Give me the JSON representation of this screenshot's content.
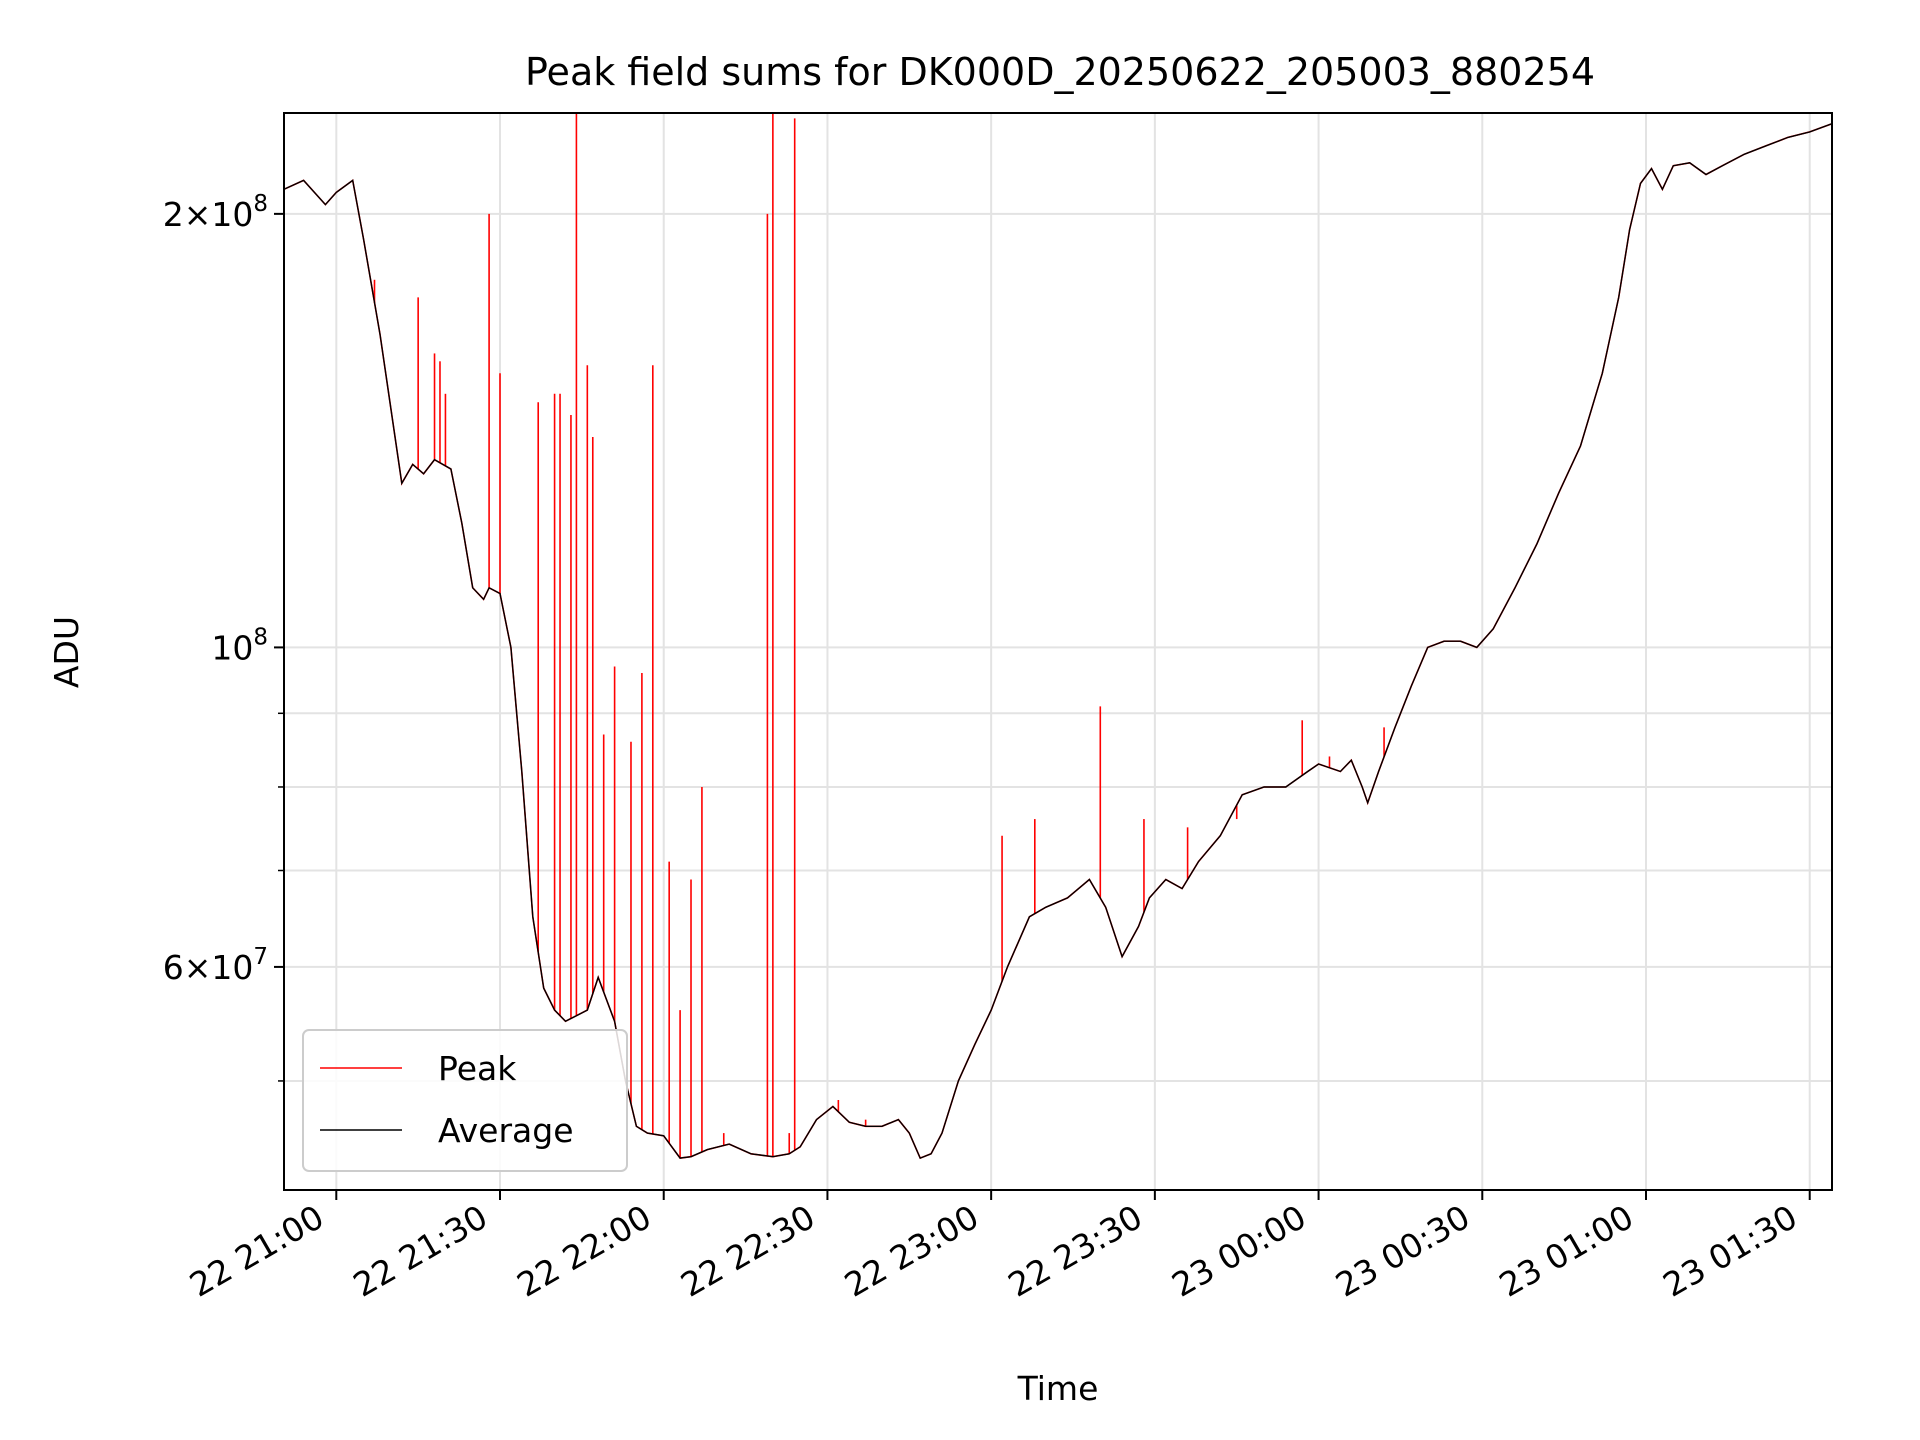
{
  "chart_data": {
    "type": "line",
    "title": "Peak field sums for DK000D_20250622_205003_880254",
    "xlabel": "Time",
    "ylabel": "ADU",
    "y_scale": "log",
    "ylim": [
      42000000,
      235000000
    ],
    "xlim": [
      "2025-06-22 20:50:25",
      "2025-06-23 01:34:05"
    ],
    "grid": true,
    "legend_position": "lower left",
    "x_ticks": [
      {
        "t": "2025-06-22 21:00",
        "label": "22 21:00"
      },
      {
        "t": "2025-06-22 21:30",
        "label": "22 21:30"
      },
      {
        "t": "2025-06-22 22:00",
        "label": "22 22:00"
      },
      {
        "t": "2025-06-22 22:30",
        "label": "22 22:30"
      },
      {
        "t": "2025-06-22 23:00",
        "label": "22 23:00"
      },
      {
        "t": "2025-06-22 23:30",
        "label": "22 23:30"
      },
      {
        "t": "2025-06-23 00:00",
        "label": "23 00:00"
      },
      {
        "t": "2025-06-23 00:30",
        "label": "23 00:30"
      },
      {
        "t": "2025-06-23 01:00",
        "label": "23 01:00"
      },
      {
        "t": "2025-06-23 01:30",
        "label": "23 01:30"
      }
    ],
    "y_major_ticks": [
      {
        "v": 60000000,
        "base": "6×10",
        "exp": "7"
      },
      {
        "v": 100000000,
        "base": "10",
        "exp": "8"
      },
      {
        "v": 200000000,
        "base": "2×10",
        "exp": "8"
      }
    ],
    "y_minor_ticks": [
      50000000,
      70000000,
      80000000,
      90000000
    ],
    "series": [
      {
        "name": "Average",
        "color": "#000000",
        "x": [
          "2025-06-22 20:50:25",
          "2025-06-22 20:54:00",
          "2025-06-22 20:58:00",
          "2025-06-22 21:00:00",
          "2025-06-22 21:03:00",
          "2025-06-22 21:05:00",
          "2025-06-22 21:08:00",
          "2025-06-22 21:12:00",
          "2025-06-22 21:14:00",
          "2025-06-22 21:16:00",
          "2025-06-22 21:18:00",
          "2025-06-22 21:21:00",
          "2025-06-22 21:23:00",
          "2025-06-22 21:25:00",
          "2025-06-22 21:27:00",
          "2025-06-22 21:28:00",
          "2025-06-22 21:30:00",
          "2025-06-22 21:32:00",
          "2025-06-22 21:34:00",
          "2025-06-22 21:36:00",
          "2025-06-22 21:38:00",
          "2025-06-22 21:40:00",
          "2025-06-22 21:42:00",
          "2025-06-22 21:44:00",
          "2025-06-22 21:46:00",
          "2025-06-22 21:48:00",
          "2025-06-22 21:51:00",
          "2025-06-22 21:53:00",
          "2025-06-22 21:55:00",
          "2025-06-22 21:57:00",
          "2025-06-22 22:00:00",
          "2025-06-22 22:03:00",
          "2025-06-22 22:05:00",
          "2025-06-22 22:08:00",
          "2025-06-22 22:12:00",
          "2025-06-22 22:16:00",
          "2025-06-22 22:20:00",
          "2025-06-22 22:23:00",
          "2025-06-22 22:25:00",
          "2025-06-22 22:28:00",
          "2025-06-22 22:31:00",
          "2025-06-22 22:34:00",
          "2025-06-22 22:37:00",
          "2025-06-22 22:40:00",
          "2025-06-22 22:43:00",
          "2025-06-22 22:45:00",
          "2025-06-22 22:47:00",
          "2025-06-22 22:49:00",
          "2025-06-22 22:51:00",
          "2025-06-22 22:54:00",
          "2025-06-22 22:57:00",
          "2025-06-22 23:00:00",
          "2025-06-22 23:03:00",
          "2025-06-22 23:07:00",
          "2025-06-22 23:10:00",
          "2025-06-22 23:14:00",
          "2025-06-22 23:18:00",
          "2025-06-22 23:21:00",
          "2025-06-22 23:24:00",
          "2025-06-22 23:27:00",
          "2025-06-22 23:29:00",
          "2025-06-22 23:32:00",
          "2025-06-22 23:35:00",
          "2025-06-22 23:38:00",
          "2025-06-22 23:42:00",
          "2025-06-22 23:46:00",
          "2025-06-22 23:50:00",
          "2025-06-22 23:54:00",
          "2025-06-22 23:58:00",
          "2025-06-23 00:00:00",
          "2025-06-23 00:04:00",
          "2025-06-23 00:06:00",
          "2025-06-23 00:08:00",
          "2025-06-23 00:09:00",
          "2025-06-23 00:11:00",
          "2025-06-23 00:14:00",
          "2025-06-23 00:17:00",
          "2025-06-23 00:20:00",
          "2025-06-23 00:23:00",
          "2025-06-23 00:26:00",
          "2025-06-23 00:29:00",
          "2025-06-23 00:32:00",
          "2025-06-23 00:36:00",
          "2025-06-23 00:40:00",
          "2025-06-23 00:44:00",
          "2025-06-23 00:48:00",
          "2025-06-23 00:52:00",
          "2025-06-23 00:55:00",
          "2025-06-23 00:57:00",
          "2025-06-23 00:59:00",
          "2025-06-23 01:01:00",
          "2025-06-23 01:03:00",
          "2025-06-23 01:05:00",
          "2025-06-23 01:08:00",
          "2025-06-23 01:11:00",
          "2025-06-23 01:14:00",
          "2025-06-23 01:18:00",
          "2025-06-23 01:22:00",
          "2025-06-23 01:26:00",
          "2025-06-23 01:30:00",
          "2025-06-23 01:34:05"
        ],
        "values": [
          208000000,
          211000000,
          203000000,
          207000000,
          211000000,
          192000000,
          165000000,
          130000000,
          134000000,
          132000000,
          135000000,
          133000000,
          122000000,
          110000000,
          108000000,
          110000000,
          109000000,
          100000000,
          82000000,
          65000000,
          58000000,
          56000000,
          55000000,
          55500000,
          56000000,
          59000000,
          55000000,
          50000000,
          46500000,
          46000000,
          45800000,
          44200000,
          44300000,
          44800000,
          45200000,
          44500000,
          44300000,
          44500000,
          45000000,
          47000000,
          48000000,
          46800000,
          46500000,
          46500000,
          47000000,
          46000000,
          44200000,
          44500000,
          46000000,
          50000000,
          53000000,
          56000000,
          60000000,
          65000000,
          66000000,
          67000000,
          69000000,
          66000000,
          61000000,
          64000000,
          67000000,
          69000000,
          68000000,
          71000000,
          74000000,
          79000000,
          80000000,
          80000000,
          82000000,
          83000000,
          82000000,
          83500000,
          80000000,
          78000000,
          82000000,
          88000000,
          94000000,
          100000000,
          101000000,
          101000000,
          100000000,
          103000000,
          110000000,
          118000000,
          128000000,
          138000000,
          155000000,
          175000000,
          195000000,
          210000000,
          215000000,
          208000000,
          216000000,
          217000000,
          213000000,
          216000000,
          220000000,
          223000000,
          226000000,
          228000000,
          231000000
        ]
      },
      {
        "name": "Peak",
        "color": "#ff0000",
        "spikes_x": [
          "2025-06-22 21:07:00",
          "2025-06-22 21:15:00",
          "2025-06-22 21:18:00",
          "2025-06-22 21:19:00",
          "2025-06-22 21:20:00",
          "2025-06-22 21:28:00",
          "2025-06-22 21:30:00",
          "2025-06-22 21:37:00",
          "2025-06-22 21:40:00",
          "2025-06-22 21:41:00",
          "2025-06-22 21:43:00",
          "2025-06-22 21:44:00",
          "2025-06-22 21:46:00",
          "2025-06-22 21:47:00",
          "2025-06-22 21:49:00",
          "2025-06-22 21:51:00",
          "2025-06-22 21:54:00",
          "2025-06-22 21:56:00",
          "2025-06-22 21:58:00",
          "2025-06-22 22:01:00",
          "2025-06-22 22:03:00",
          "2025-06-22 22:05:00",
          "2025-06-22 22:07:00",
          "2025-06-22 22:11:00",
          "2025-06-22 22:19:00",
          "2025-06-22 22:20:00",
          "2025-06-22 22:23:00",
          "2025-06-22 22:24:00",
          "2025-06-22 22:32:00",
          "2025-06-22 22:37:00",
          "2025-06-22 23:02:00",
          "2025-06-22 23:08:00",
          "2025-06-22 23:20:00",
          "2025-06-22 23:28:00",
          "2025-06-22 23:36:00",
          "2025-06-22 23:45:00",
          "2025-06-22 23:57:00",
          "2025-06-23 00:02:00",
          "2025-06-23 00:12:00"
        ],
        "spikes_values": [
          180000000,
          175000000,
          160000000,
          158000000,
          150000000,
          200000000,
          155000000,
          148000000,
          150000000,
          150000000,
          145000000,
          235000000,
          157000000,
          140000000,
          87000000,
          97000000,
          86000000,
          96000000,
          157000000,
          71000000,
          56000000,
          69000000,
          80000000,
          46000000,
          200000000,
          240000000,
          46000000,
          233000000,
          48500000,
          47000000,
          74000000,
          76000000,
          91000000,
          76000000,
          75000000,
          76000000,
          89000000,
          84000000,
          88000000
        ]
      }
    ]
  }
}
